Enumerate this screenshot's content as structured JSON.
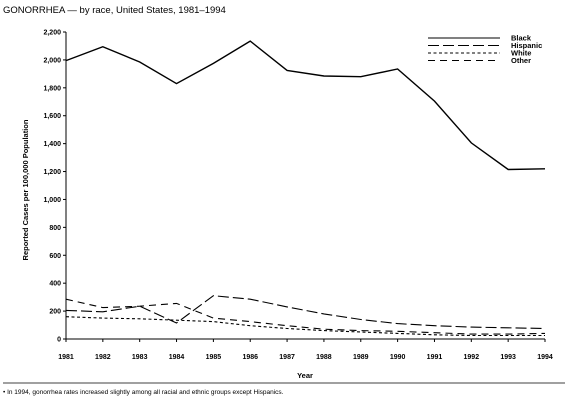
{
  "chart_data": {
    "type": "line",
    "title": "GONORRHEA — by race, United States, 1981–1994",
    "xlabel": "Year",
    "ylabel": "Reported Cases per 100,000 Population",
    "x": [
      1981,
      1982,
      1983,
      1984,
      1985,
      1986,
      1987,
      1988,
      1989,
      1990,
      1991,
      1992,
      1993,
      1994
    ],
    "ylim": [
      0,
      2200
    ],
    "yticks": [
      0,
      200,
      400,
      600,
      800,
      1000,
      1200,
      1400,
      1600,
      1800,
      2000,
      2200
    ],
    "ytick_labels": [
      "0",
      "200",
      "400",
      "600",
      "800",
      "1,000",
      "1,200",
      "1,400",
      "1,600",
      "1,800",
      "2,000",
      "2,200"
    ],
    "grid": false,
    "legend_position": "top-right",
    "series": [
      {
        "name": "Black",
        "style": "solid",
        "values": [
          1995,
          2095,
          1985,
          1830,
          1975,
          2135,
          1925,
          1885,
          1880,
          1935,
          1705,
          1405,
          1215,
          1220
        ]
      },
      {
        "name": "Hispanic",
        "style": "long-dash",
        "values": [
          205,
          195,
          235,
          115,
          310,
          285,
          230,
          180,
          140,
          110,
          95,
          85,
          80,
          75
        ]
      },
      {
        "name": "White",
        "style": "short-dash",
        "values": [
          160,
          150,
          145,
          135,
          125,
          95,
          75,
          60,
          50,
          40,
          30,
          25,
          25,
          25
        ]
      },
      {
        "name": "Other",
        "style": "dash",
        "values": [
          285,
          225,
          235,
          255,
          150,
          125,
          95,
          70,
          60,
          55,
          45,
          35,
          35,
          40
        ]
      }
    ],
    "colors": {
      "line": "#000000",
      "background": "#ffffff"
    },
    "footnote": "• In 1994, gonorrhea rates increased slightly among all racial and ethnic groups except Hispanics."
  }
}
